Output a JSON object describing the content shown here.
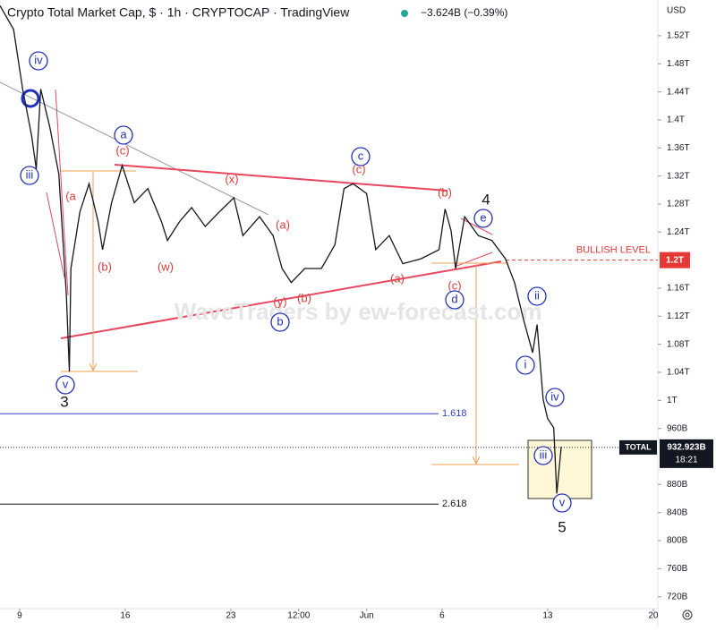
{
  "chart_data": {
    "type": "line",
    "title": "Crypto Total Market Cap, $ · 1h · CRYPTOCAP · TradingView",
    "change": "−3.624B (−0.39%)",
    "currency": "USD",
    "watermark": "WaveTraders by ew-forecast.com",
    "color": "#131722",
    "x": [
      -1.3,
      -0.4,
      0.2,
      0.8,
      1.1,
      1.4,
      2.0,
      2.6,
      3.1,
      3.3,
      3.4,
      4.0,
      4.6,
      5.2,
      5.5,
      6.1,
      6.8,
      7.6,
      8.5,
      9.4,
      9.8,
      10.6,
      11.4,
      12.3,
      13.2,
      14.2,
      14.8,
      15.9,
      16.8,
      17.4,
      18.0,
      18.9,
      20.0,
      20.9,
      21.5,
      22.1,
      23.0,
      23.6,
      24.5,
      25.4,
      26.6,
      27.8,
      28.2,
      28.6,
      28.9,
      29.5,
      30.4,
      31.3,
      32.2,
      32.8,
      33.4,
      34.0,
      34.3,
      34.7,
      35.0,
      35.4,
      35.6,
      35.9
    ],
    "values": [
      1563,
      1529,
      1444,
      1377,
      1330,
      1444,
      1390,
      1323,
      1149,
      1041,
      1188,
      1269,
      1309,
      1255,
      1215,
      1282,
      1335,
      1282,
      1302,
      1255,
      1228,
      1255,
      1275,
      1248,
      1268,
      1289,
      1235,
      1262,
      1235,
      1188,
      1168,
      1188,
      1188,
      1222,
      1302,
      1309,
      1295,
      1215,
      1235,
      1195,
      1202,
      1215,
      1273,
      1242,
      1188,
      1262,
      1235,
      1228,
      1202,
      1168,
      1115,
      1068,
      1108,
      1001,
      974,
      961,
      867,
      934
    ],
    "xlim": [
      -1.3,
      42.3
    ],
    "ylim": [
      703,
      1571
    ],
    "xticks": [
      {
        "value": 0,
        "label": "9"
      },
      {
        "value": 7,
        "label": "16"
      },
      {
        "value": 14,
        "label": "23"
      },
      {
        "value": 18.5,
        "label": "12:00"
      },
      {
        "value": 23,
        "label": "Jun"
      },
      {
        "value": 28,
        "label": "6"
      },
      {
        "value": 35,
        "label": "13"
      },
      {
        "value": 42,
        "label": "20"
      }
    ],
    "yticks": [
      {
        "value": 720,
        "label": "720B"
      },
      {
        "value": 760,
        "label": "760B"
      },
      {
        "value": 800,
        "label": "800B"
      },
      {
        "value": 840,
        "label": "840B"
      },
      {
        "value": 880,
        "label": "880B"
      },
      {
        "value": 960,
        "label": "960B"
      },
      {
        "value": 1000,
        "label": "1T"
      },
      {
        "value": 1040,
        "label": "1.04T"
      },
      {
        "value": 1080,
        "label": "1.08T"
      },
      {
        "value": 1120,
        "label": "1.12T"
      },
      {
        "value": 1160,
        "label": "1.16T"
      },
      {
        "value": 1240,
        "label": "1.24T"
      },
      {
        "value": 1280,
        "label": "1.28T"
      },
      {
        "value": 1320,
        "label": "1.32T"
      },
      {
        "value": 1360,
        "label": "1.36T"
      },
      {
        "value": 1400,
        "label": "1.4T"
      },
      {
        "value": 1440,
        "label": "1.44T"
      },
      {
        "value": 1480,
        "label": "1.48T"
      },
      {
        "value": 1520,
        "label": "1.52T"
      }
    ],
    "bullish_level": {
      "value": 1200,
      "label": "1.2T",
      "name": "BULLISH LEVEL"
    },
    "last_price": {
      "name": "TOTAL",
      "value": 932.923,
      "label": "932.923B",
      "countdown": "18:21"
    },
    "fib_levels": [
      {
        "value": 981,
        "label": "1.618"
      },
      {
        "value": 852,
        "label": "2.618"
      }
    ],
    "annotations": [
      "iv",
      "iii",
      "v",
      "3",
      "a",
      "(c)",
      "(a",
      "(b)",
      "(w)",
      "(x)",
      "(a)",
      "(y)",
      "(b)",
      "b",
      "c",
      "(c)",
      "(b)",
      "4",
      "e",
      "(c)",
      "d",
      "(a)",
      "ii",
      "i",
      "iv",
      "iii",
      "v",
      "5"
    ]
  }
}
